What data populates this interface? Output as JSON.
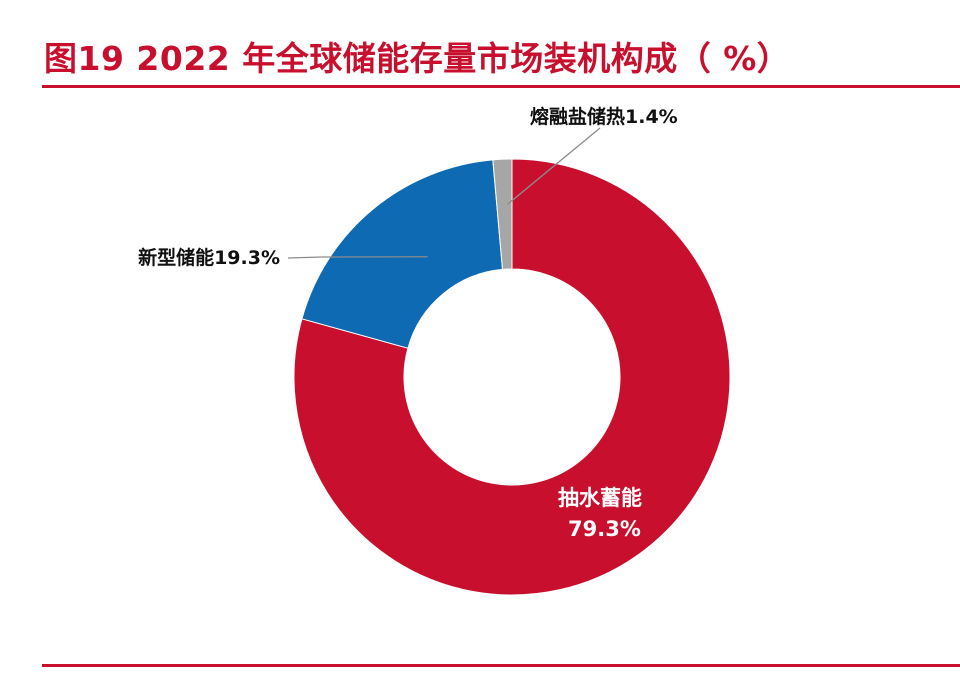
{
  "title": "图19  2022 年全球储能存量市场装机构成（ %）",
  "colors": {
    "accent": "#c8102e",
    "slice_pumped": "#c8102e",
    "slice_new": "#0f6ab4",
    "slice_molten": "#a6a6a6"
  },
  "chart_data": {
    "type": "pie",
    "variant": "donut",
    "title": "图19  2022 年全球储能存量市场装机构成（ %）",
    "categories": [
      "抽水蓄能",
      "新型储能",
      "熔融盐储热"
    ],
    "values": [
      79.3,
      19.3,
      1.4
    ],
    "labels": {
      "pumped_name": "抽水蓄能",
      "pumped_value": "79.3%",
      "new_storage": "新型储能19.3%",
      "molten_salt": "熔融盐储热1.4%"
    },
    "legend": "none"
  }
}
